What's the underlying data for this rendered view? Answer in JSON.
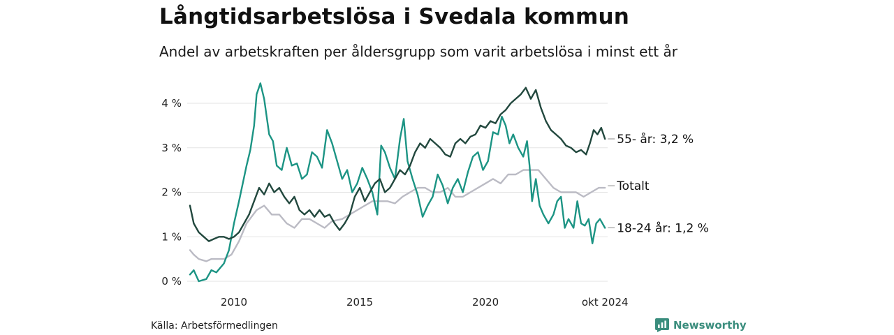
{
  "title": "Långtidsarbetslösa i Svedala kommun",
  "subtitle": "Andel av arbetskraften per åldersgrupp som varit arbetslösa i minst ett år",
  "source": "Källa: Arbetsförmedlingen",
  "brand": {
    "name": "Newsworthy",
    "icon": "newsworthy-logo-icon",
    "color": "#3a8d7d"
  },
  "chart_data": {
    "type": "line",
    "x_start": 2008.25,
    "x_end": 2024.8,
    "x_ticks": [
      {
        "value": 2010,
        "label": "2010"
      },
      {
        "value": 2015,
        "label": "2015"
      },
      {
        "value": 2020,
        "label": "2020"
      },
      {
        "value": 2024.75,
        "label": "okt 2024"
      }
    ],
    "y_ticks": [
      {
        "value": 0,
        "label": "0 %"
      },
      {
        "value": 1,
        "label": "1 %"
      },
      {
        "value": 2,
        "label": "2 %"
      },
      {
        "value": 3,
        "label": "3 %"
      },
      {
        "value": 4,
        "label": "4 %"
      }
    ],
    "ylim": [
      0,
      4.5
    ],
    "grid": true,
    "series": [
      {
        "name": "Totalt",
        "end_label": "Totalt",
        "color": "#bbbbc4",
        "points": [
          [
            2008.25,
            0.7
          ],
          [
            2008.4,
            0.6
          ],
          [
            2008.6,
            0.5
          ],
          [
            2008.9,
            0.45
          ],
          [
            2009.1,
            0.5
          ],
          [
            2009.6,
            0.5
          ],
          [
            2009.9,
            0.6
          ],
          [
            2010.2,
            0.9
          ],
          [
            2010.5,
            1.3
          ],
          [
            2010.9,
            1.6
          ],
          [
            2011.2,
            1.7
          ],
          [
            2011.5,
            1.5
          ],
          [
            2011.8,
            1.5
          ],
          [
            2012.1,
            1.3
          ],
          [
            2012.4,
            1.2
          ],
          [
            2012.7,
            1.4
          ],
          [
            2013.0,
            1.4
          ],
          [
            2013.3,
            1.3
          ],
          [
            2013.6,
            1.2
          ],
          [
            2013.9,
            1.35
          ],
          [
            2014.3,
            1.4
          ],
          [
            2014.6,
            1.5
          ],
          [
            2014.9,
            1.6
          ],
          [
            2015.2,
            1.7
          ],
          [
            2015.5,
            1.8
          ],
          [
            2015.8,
            1.8
          ],
          [
            2016.1,
            1.8
          ],
          [
            2016.4,
            1.75
          ],
          [
            2016.7,
            1.9
          ],
          [
            2017.0,
            2.0
          ],
          [
            2017.3,
            2.1
          ],
          [
            2017.6,
            2.1
          ],
          [
            2017.9,
            2.0
          ],
          [
            2018.2,
            2.0
          ],
          [
            2018.5,
            2.1
          ],
          [
            2018.8,
            1.9
          ],
          [
            2019.1,
            1.9
          ],
          [
            2019.4,
            2.0
          ],
          [
            2019.7,
            2.1
          ],
          [
            2020.0,
            2.2
          ],
          [
            2020.3,
            2.3
          ],
          [
            2020.6,
            2.2
          ],
          [
            2020.9,
            2.4
          ],
          [
            2021.2,
            2.4
          ],
          [
            2021.5,
            2.5
          ],
          [
            2021.8,
            2.5
          ],
          [
            2022.1,
            2.5
          ],
          [
            2022.4,
            2.3
          ],
          [
            2022.7,
            2.1
          ],
          [
            2023.0,
            2.0
          ],
          [
            2023.3,
            2.0
          ],
          [
            2023.6,
            2.0
          ],
          [
            2023.9,
            1.9
          ],
          [
            2024.2,
            2.0
          ],
          [
            2024.5,
            2.1
          ],
          [
            2024.75,
            2.1
          ]
        ]
      },
      {
        "name": "18-24 år",
        "end_label": "18-24 år: 1,2 %",
        "color": "#1c9484",
        "points": [
          [
            2008.25,
            0.15
          ],
          [
            2008.4,
            0.25
          ],
          [
            2008.6,
            0.0
          ],
          [
            2008.9,
            0.05
          ],
          [
            2009.1,
            0.25
          ],
          [
            2009.3,
            0.2
          ],
          [
            2009.6,
            0.4
          ],
          [
            2009.8,
            0.7
          ],
          [
            2010.0,
            1.3
          ],
          [
            2010.2,
            1.8
          ],
          [
            2010.35,
            2.2
          ],
          [
            2010.5,
            2.6
          ],
          [
            2010.65,
            2.95
          ],
          [
            2010.8,
            3.5
          ],
          [
            2010.9,
            4.2
          ],
          [
            2011.05,
            4.45
          ],
          [
            2011.2,
            4.1
          ],
          [
            2011.4,
            3.3
          ],
          [
            2011.55,
            3.15
          ],
          [
            2011.7,
            2.6
          ],
          [
            2011.9,
            2.5
          ],
          [
            2012.1,
            3.0
          ],
          [
            2012.3,
            2.6
          ],
          [
            2012.5,
            2.65
          ],
          [
            2012.7,
            2.3
          ],
          [
            2012.9,
            2.4
          ],
          [
            2013.1,
            2.9
          ],
          [
            2013.3,
            2.8
          ],
          [
            2013.5,
            2.55
          ],
          [
            2013.7,
            3.4
          ],
          [
            2013.9,
            3.1
          ],
          [
            2014.1,
            2.7
          ],
          [
            2014.3,
            2.3
          ],
          [
            2014.5,
            2.5
          ],
          [
            2014.7,
            2.0
          ],
          [
            2014.9,
            2.2
          ],
          [
            2015.1,
            2.55
          ],
          [
            2015.3,
            2.3
          ],
          [
            2015.5,
            2.0
          ],
          [
            2015.7,
            1.5
          ],
          [
            2015.85,
            3.05
          ],
          [
            2016.0,
            2.9
          ],
          [
            2016.2,
            2.55
          ],
          [
            2016.4,
            2.3
          ],
          [
            2016.6,
            3.2
          ],
          [
            2016.75,
            3.65
          ],
          [
            2016.9,
            2.7
          ],
          [
            2017.1,
            2.3
          ],
          [
            2017.3,
            1.95
          ],
          [
            2017.5,
            1.45
          ],
          [
            2017.7,
            1.7
          ],
          [
            2017.9,
            1.9
          ],
          [
            2018.1,
            2.4
          ],
          [
            2018.3,
            2.15
          ],
          [
            2018.5,
            1.75
          ],
          [
            2018.7,
            2.1
          ],
          [
            2018.9,
            2.3
          ],
          [
            2019.1,
            2.0
          ],
          [
            2019.3,
            2.45
          ],
          [
            2019.5,
            2.8
          ],
          [
            2019.7,
            2.9
          ],
          [
            2019.9,
            2.5
          ],
          [
            2020.1,
            2.7
          ],
          [
            2020.3,
            3.35
          ],
          [
            2020.5,
            3.3
          ],
          [
            2020.65,
            3.7
          ],
          [
            2020.8,
            3.5
          ],
          [
            2020.95,
            3.1
          ],
          [
            2021.1,
            3.3
          ],
          [
            2021.3,
            3.0
          ],
          [
            2021.5,
            2.8
          ],
          [
            2021.65,
            3.15
          ],
          [
            2021.75,
            2.6
          ],
          [
            2021.85,
            1.8
          ],
          [
            2022.0,
            2.3
          ],
          [
            2022.15,
            1.7
          ],
          [
            2022.3,
            1.5
          ],
          [
            2022.5,
            1.3
          ],
          [
            2022.7,
            1.5
          ],
          [
            2022.85,
            1.8
          ],
          [
            2023.0,
            1.9
          ],
          [
            2023.15,
            1.2
          ],
          [
            2023.3,
            1.4
          ],
          [
            2023.5,
            1.2
          ],
          [
            2023.65,
            1.8
          ],
          [
            2023.8,
            1.3
          ],
          [
            2023.95,
            1.25
          ],
          [
            2024.1,
            1.4
          ],
          [
            2024.25,
            0.85
          ],
          [
            2024.4,
            1.3
          ],
          [
            2024.55,
            1.4
          ],
          [
            2024.75,
            1.2
          ]
        ]
      },
      {
        "name": "55- år",
        "end_label": "55- år: 3,2 %",
        "color": "#22483e",
        "points": [
          [
            2008.25,
            1.7
          ],
          [
            2008.4,
            1.3
          ],
          [
            2008.6,
            1.1
          ],
          [
            2008.8,
            1.0
          ],
          [
            2009.0,
            0.9
          ],
          [
            2009.2,
            0.95
          ],
          [
            2009.4,
            1.0
          ],
          [
            2009.6,
            1.0
          ],
          [
            2009.8,
            0.95
          ],
          [
            2010.0,
            1.0
          ],
          [
            2010.2,
            1.1
          ],
          [
            2010.4,
            1.3
          ],
          [
            2010.6,
            1.5
          ],
          [
            2010.8,
            1.8
          ],
          [
            2011.0,
            2.1
          ],
          [
            2011.2,
            1.95
          ],
          [
            2011.4,
            2.2
          ],
          [
            2011.6,
            2.0
          ],
          [
            2011.8,
            2.1
          ],
          [
            2012.0,
            1.9
          ],
          [
            2012.2,
            1.75
          ],
          [
            2012.4,
            1.9
          ],
          [
            2012.6,
            1.6
          ],
          [
            2012.8,
            1.5
          ],
          [
            2013.0,
            1.6
          ],
          [
            2013.2,
            1.45
          ],
          [
            2013.4,
            1.6
          ],
          [
            2013.6,
            1.45
          ],
          [
            2013.8,
            1.5
          ],
          [
            2014.0,
            1.3
          ],
          [
            2014.2,
            1.15
          ],
          [
            2014.4,
            1.3
          ],
          [
            2014.6,
            1.5
          ],
          [
            2014.8,
            1.9
          ],
          [
            2015.0,
            2.1
          ],
          [
            2015.2,
            1.8
          ],
          [
            2015.4,
            2.0
          ],
          [
            2015.6,
            2.2
          ],
          [
            2015.8,
            2.3
          ],
          [
            2016.0,
            2.0
          ],
          [
            2016.2,
            2.1
          ],
          [
            2016.4,
            2.3
          ],
          [
            2016.6,
            2.5
          ],
          [
            2016.8,
            2.4
          ],
          [
            2017.0,
            2.6
          ],
          [
            2017.2,
            2.9
          ],
          [
            2017.4,
            3.1
          ],
          [
            2017.6,
            3.0
          ],
          [
            2017.8,
            3.2
          ],
          [
            2018.0,
            3.1
          ],
          [
            2018.2,
            3.0
          ],
          [
            2018.4,
            2.85
          ],
          [
            2018.6,
            2.8
          ],
          [
            2018.8,
            3.1
          ],
          [
            2019.0,
            3.2
          ],
          [
            2019.2,
            3.1
          ],
          [
            2019.4,
            3.25
          ],
          [
            2019.6,
            3.3
          ],
          [
            2019.8,
            3.5
          ],
          [
            2020.0,
            3.45
          ],
          [
            2020.2,
            3.6
          ],
          [
            2020.4,
            3.55
          ],
          [
            2020.6,
            3.75
          ],
          [
            2020.8,
            3.85
          ],
          [
            2021.0,
            4.0
          ],
          [
            2021.2,
            4.1
          ],
          [
            2021.4,
            4.2
          ],
          [
            2021.6,
            4.35
          ],
          [
            2021.8,
            4.1
          ],
          [
            2022.0,
            4.3
          ],
          [
            2022.2,
            3.9
          ],
          [
            2022.4,
            3.6
          ],
          [
            2022.6,
            3.4
          ],
          [
            2022.8,
            3.3
          ],
          [
            2023.0,
            3.2
          ],
          [
            2023.2,
            3.05
          ],
          [
            2023.4,
            3.0
          ],
          [
            2023.6,
            2.9
          ],
          [
            2023.8,
            2.95
          ],
          [
            2024.0,
            2.85
          ],
          [
            2024.15,
            3.1
          ],
          [
            2024.3,
            3.4
          ],
          [
            2024.45,
            3.3
          ],
          [
            2024.6,
            3.45
          ],
          [
            2024.75,
            3.2
          ]
        ]
      }
    ]
  }
}
